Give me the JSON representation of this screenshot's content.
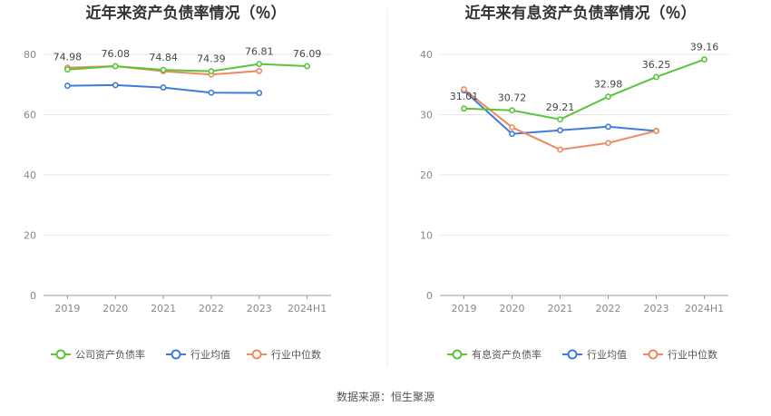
{
  "source_note": "数据来源：恒生聚源",
  "chart_data": [
    {
      "type": "line",
      "title": "近年来资产负债率情况（％）",
      "categories": [
        "2019",
        "2020",
        "2021",
        "2022",
        "2023",
        "2024H1"
      ],
      "ylim": [
        0,
        80
      ],
      "yticks": [
        0,
        20,
        40,
        60,
        80
      ],
      "grid": true,
      "legend_position": "bottom",
      "series": [
        {
          "name": "公司资产负债率",
          "color": "#5ac43a",
          "values": [
            74.98,
            76.08,
            74.84,
            74.39,
            76.81,
            76.09
          ],
          "labels": [
            "74.98",
            "76.08",
            "74.84",
            "74.39",
            "76.81",
            "76.09"
          ]
        },
        {
          "name": "行业均值",
          "color": "#3f7bd8",
          "values": [
            69.6,
            69.8,
            69.0,
            67.3,
            67.2,
            null
          ]
        },
        {
          "name": "行业中位数",
          "color": "#ef8a60",
          "values": [
            75.6,
            76.1,
            74.4,
            73.3,
            74.5,
            null
          ]
        }
      ]
    },
    {
      "type": "line",
      "title": "近年来有息资产负债率情况（％）",
      "categories": [
        "2019",
        "2020",
        "2021",
        "2022",
        "2023",
        "2024H1"
      ],
      "ylim": [
        0,
        40
      ],
      "yticks": [
        0,
        10,
        20,
        30,
        40
      ],
      "grid": true,
      "legend_position": "bottom",
      "series": [
        {
          "name": "有息资产负债率",
          "color": "#5ac43a",
          "values": [
            31.01,
            30.72,
            29.21,
            32.98,
            36.25,
            39.16
          ],
          "labels": [
            "31.01",
            "30.72",
            "29.21",
            "32.98",
            "36.25",
            "39.16"
          ]
        },
        {
          "name": "行业均值",
          "color": "#3f7bd8",
          "values": [
            34.0,
            26.8,
            27.4,
            28.0,
            27.3,
            null
          ]
        },
        {
          "name": "行业中位数",
          "color": "#ef8a60",
          "values": [
            34.2,
            27.9,
            24.2,
            25.3,
            27.3,
            null
          ]
        }
      ]
    }
  ]
}
